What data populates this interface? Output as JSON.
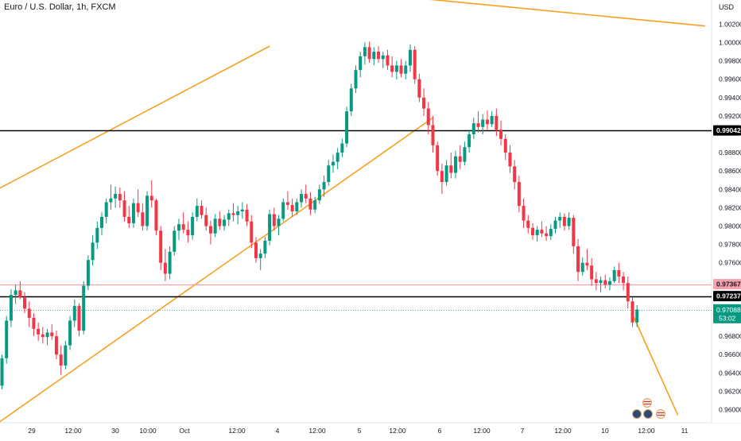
{
  "symbol_title": "Euro / U.S. Dollar, 1h, FXCM",
  "chart_data": {
    "type": "candlestick",
    "currency_label": "USD",
    "ylim": [
      0.9582,
      0.0
    ],
    "y_ticks": [
      "1.00200",
      "1.00000",
      "0.99800",
      "0.99600",
      "0.99400",
      "0.99200",
      "0.98800",
      "0.98600",
      "0.98400",
      "0.98200",
      "0.98000",
      "0.97800",
      "0.97600",
      "0.96800",
      "0.96600",
      "0.96400",
      "0.96200",
      "0.96000"
    ],
    "x_ticks": [
      "29",
      "12:00",
      "30",
      "10:00",
      "Oct",
      "12:00",
      "4",
      "12:00",
      "5",
      "12:00",
      "6",
      "12:00",
      "7",
      "12:00",
      "10",
      "12:00",
      "11"
    ],
    "horizontal_levels": [
      {
        "price": 0.99042,
        "label": "0.99042",
        "color": "#000000",
        "label_bg": "#000000"
      },
      {
        "price": 0.97367,
        "label": "0.97367",
        "color": "#f7a1ac",
        "label_bg": "#f7a1ac"
      },
      {
        "price": 0.97237,
        "label": "0.97237",
        "color": "#000000",
        "label_bg": "#000000"
      }
    ],
    "last_price": {
      "price": 0.97088,
      "label": "0.97088",
      "countdown": "53:02",
      "color": "#089981"
    },
    "trend_lines": [
      {
        "x1": -1,
        "y1": 0.984,
        "x2": 59,
        "y2": 0.9996,
        "color": "#f7a020"
      },
      {
        "x1": -1,
        "y1": 0.9585,
        "x2": 95,
        "y2": 0.9918,
        "color": "#f7a020"
      },
      {
        "x1": 88,
        "y1": 1.005,
        "x2": 155,
        "y2": 1.0018,
        "color": "#f7a020"
      },
      {
        "x1": 139,
        "y1": 0.9704,
        "x2": 149,
        "y2": 0.9594,
        "color": "#f7a020"
      }
    ],
    "up_color": "#089981",
    "down_color": "#f23645",
    "candles": [
      [
        0.9626,
        0.966,
        0.9622,
        0.9656
      ],
      [
        0.9656,
        0.9702,
        0.965,
        0.9697
      ],
      [
        0.9697,
        0.9731,
        0.969,
        0.9725
      ],
      [
        0.9725,
        0.9736,
        0.9715,
        0.973
      ],
      [
        0.973,
        0.974,
        0.972,
        0.9722
      ],
      [
        0.9722,
        0.9728,
        0.9705,
        0.971
      ],
      [
        0.971,
        0.9718,
        0.969,
        0.97
      ],
      [
        0.97,
        0.9705,
        0.968,
        0.9688
      ],
      [
        0.9688,
        0.9695,
        0.9675,
        0.9682
      ],
      [
        0.9682,
        0.969,
        0.9672,
        0.9679
      ],
      [
        0.9679,
        0.9688,
        0.967,
        0.9684
      ],
      [
        0.9684,
        0.9693,
        0.9676,
        0.968
      ],
      [
        0.968,
        0.9686,
        0.9655,
        0.966
      ],
      [
        0.966,
        0.967,
        0.9638,
        0.9648
      ],
      [
        0.9648,
        0.9675,
        0.9644,
        0.967
      ],
      [
        0.967,
        0.9702,
        0.9665,
        0.9697
      ],
      [
        0.9697,
        0.972,
        0.969,
        0.9713
      ],
      [
        0.9713,
        0.9716,
        0.968,
        0.9686
      ],
      [
        0.9686,
        0.974,
        0.9682,
        0.9735
      ],
      [
        0.9735,
        0.9768,
        0.973,
        0.9763
      ],
      [
        0.9763,
        0.979,
        0.9757,
        0.9782
      ],
      [
        0.9782,
        0.9805,
        0.9775,
        0.9798
      ],
      [
        0.9798,
        0.9815,
        0.979,
        0.981
      ],
      [
        0.981,
        0.983,
        0.9803,
        0.9826
      ],
      [
        0.9826,
        0.9845,
        0.9818,
        0.983
      ],
      [
        0.983,
        0.9843,
        0.982,
        0.9835
      ],
      [
        0.9835,
        0.9842,
        0.982,
        0.9828
      ],
      [
        0.9828,
        0.9838,
        0.9805,
        0.981
      ],
      [
        0.981,
        0.9822,
        0.9798,
        0.9803
      ],
      [
        0.9803,
        0.983,
        0.9798,
        0.9825
      ],
      [
        0.9825,
        0.984,
        0.981,
        0.9815
      ],
      [
        0.9815,
        0.9825,
        0.9795,
        0.98
      ],
      [
        0.98,
        0.9838,
        0.9795,
        0.9833
      ],
      [
        0.9833,
        0.985,
        0.982,
        0.9828
      ],
      [
        0.9828,
        0.983,
        0.979,
        0.9795
      ],
      [
        0.9795,
        0.98,
        0.9752,
        0.976
      ],
      [
        0.976,
        0.9775,
        0.974,
        0.9748
      ],
      [
        0.9748,
        0.9778,
        0.9742,
        0.9772
      ],
      [
        0.9772,
        0.98,
        0.9768,
        0.9795
      ],
      [
        0.9795,
        0.9808,
        0.9785,
        0.9802
      ],
      [
        0.9802,
        0.9815,
        0.9792,
        0.9796
      ],
      [
        0.9796,
        0.9805,
        0.9782,
        0.979
      ],
      [
        0.979,
        0.9815,
        0.9785,
        0.981
      ],
      [
        0.981,
        0.983,
        0.9805,
        0.9822
      ],
      [
        0.9822,
        0.9828,
        0.9808,
        0.9812
      ],
      [
        0.9812,
        0.982,
        0.9795,
        0.98
      ],
      [
        0.98,
        0.9806,
        0.978,
        0.9792
      ],
      [
        0.9792,
        0.9813,
        0.9788,
        0.9808
      ],
      [
        0.9808,
        0.9816,
        0.9796,
        0.98
      ],
      [
        0.98,
        0.9812,
        0.9795,
        0.9807
      ],
      [
        0.9807,
        0.9818,
        0.98,
        0.9814
      ],
      [
        0.9814,
        0.9825,
        0.9805,
        0.9812
      ],
      [
        0.9812,
        0.9822,
        0.9802,
        0.9816
      ],
      [
        0.9816,
        0.9826,
        0.9808,
        0.9818
      ],
      [
        0.9818,
        0.9824,
        0.98,
        0.9805
      ],
      [
        0.9805,
        0.9812,
        0.9776,
        0.9782
      ],
      [
        0.9782,
        0.9788,
        0.976,
        0.9765
      ],
      [
        0.9765,
        0.9775,
        0.9752,
        0.977
      ],
      [
        0.977,
        0.9788,
        0.9765,
        0.9784
      ],
      [
        0.9784,
        0.9818,
        0.9779,
        0.9813
      ],
      [
        0.9813,
        0.982,
        0.9795,
        0.98
      ],
      [
        0.98,
        0.9812,
        0.979,
        0.9808
      ],
      [
        0.9808,
        0.983,
        0.9805,
        0.9826
      ],
      [
        0.9826,
        0.9838,
        0.9818,
        0.9823
      ],
      [
        0.9823,
        0.983,
        0.981,
        0.9816
      ],
      [
        0.9816,
        0.983,
        0.9812,
        0.9826
      ],
      [
        0.9826,
        0.984,
        0.982,
        0.9835
      ],
      [
        0.9835,
        0.9845,
        0.9825,
        0.983
      ],
      [
        0.983,
        0.9837,
        0.9812,
        0.9818
      ],
      [
        0.9818,
        0.9832,
        0.9814,
        0.9828
      ],
      [
        0.9828,
        0.9845,
        0.9824,
        0.984
      ],
      [
        0.984,
        0.9855,
        0.9832,
        0.9848
      ],
      [
        0.9848,
        0.9872,
        0.9844,
        0.9866
      ],
      [
        0.9866,
        0.9878,
        0.9858,
        0.987
      ],
      [
        0.987,
        0.9885,
        0.9862,
        0.988
      ],
      [
        0.988,
        0.9895,
        0.9875,
        0.989
      ],
      [
        0.989,
        0.993,
        0.9886,
        0.9925
      ],
      [
        0.9925,
        0.9955,
        0.992,
        0.995
      ],
      [
        0.995,
        0.9975,
        0.9945,
        0.997
      ],
      [
        0.997,
        0.999,
        0.9962,
        0.9985
      ],
      [
        0.9985,
        1.0,
        0.9976,
        0.9995
      ],
      [
        0.9995,
        1.0001,
        0.9978,
        0.9982
      ],
      [
        0.9982,
        0.9995,
        0.9975,
        0.999
      ],
      [
        0.999,
        0.9996,
        0.9978,
        0.9982
      ],
      [
        0.9982,
        0.999,
        0.9972,
        0.9986
      ],
      [
        0.9986,
        0.9992,
        0.997,
        0.9975
      ],
      [
        0.9975,
        0.9985,
        0.9962,
        0.9968
      ],
      [
        0.9968,
        0.998,
        0.996,
        0.9975
      ],
      [
        0.9975,
        0.9982,
        0.9962,
        0.9966
      ],
      [
        0.9966,
        0.998,
        0.996,
        0.9975
      ],
      [
        0.9975,
        0.9998,
        0.9968,
        0.9992
      ],
      [
        0.9992,
        0.9996,
        0.9955,
        0.996
      ],
      [
        0.996,
        0.9966,
        0.9935,
        0.994
      ],
      [
        0.994,
        0.995,
        0.992,
        0.9928
      ],
      [
        0.9928,
        0.9935,
        0.99,
        0.991
      ],
      [
        0.991,
        0.992,
        0.988,
        0.9888
      ],
      [
        0.9888,
        0.9892,
        0.9855,
        0.986
      ],
      [
        0.986,
        0.9868,
        0.9835,
        0.9848
      ],
      [
        0.9848,
        0.9872,
        0.9844,
        0.9866
      ],
      [
        0.9866,
        0.988,
        0.9852,
        0.9858
      ],
      [
        0.9858,
        0.9882,
        0.9852,
        0.9876
      ],
      [
        0.9876,
        0.9888,
        0.9862,
        0.987
      ],
      [
        0.987,
        0.9892,
        0.9866,
        0.9886
      ],
      [
        0.9886,
        0.9905,
        0.988,
        0.99
      ],
      [
        0.99,
        0.9918,
        0.9895,
        0.9912
      ],
      [
        0.9912,
        0.9925,
        0.9902,
        0.9908
      ],
      [
        0.9908,
        0.9922,
        0.99,
        0.9916
      ],
      [
        0.9916,
        0.9926,
        0.9905,
        0.9911
      ],
      [
        0.9911,
        0.9925,
        0.9908,
        0.992
      ],
      [
        0.992,
        0.9928,
        0.9898,
        0.9905
      ],
      [
        0.9905,
        0.9915,
        0.9888,
        0.9895
      ],
      [
        0.9895,
        0.99,
        0.9872,
        0.988
      ],
      [
        0.988,
        0.9888,
        0.9858,
        0.9865
      ],
      [
        0.9865,
        0.9872,
        0.984,
        0.9848
      ],
      [
        0.9848,
        0.9855,
        0.9815,
        0.9822
      ],
      [
        0.9822,
        0.983,
        0.9798,
        0.9806
      ],
      [
        0.9806,
        0.9812,
        0.9792,
        0.9798
      ],
      [
        0.9798,
        0.9803,
        0.9785,
        0.979
      ],
      [
        0.979,
        0.98,
        0.9783,
        0.9796
      ],
      [
        0.9796,
        0.9805,
        0.9788,
        0.9792
      ],
      [
        0.9792,
        0.98,
        0.9784,
        0.9789
      ],
      [
        0.9789,
        0.9802,
        0.9785,
        0.9797
      ],
      [
        0.9797,
        0.981,
        0.9792,
        0.9806
      ],
      [
        0.9806,
        0.9815,
        0.9798,
        0.981
      ],
      [
        0.981,
        0.9814,
        0.9795,
        0.98
      ],
      [
        0.98,
        0.9815,
        0.9796,
        0.9809
      ],
      [
        0.9809,
        0.9812,
        0.977,
        0.9778
      ],
      [
        0.9778,
        0.9786,
        0.974,
        0.975
      ],
      [
        0.975,
        0.9766,
        0.9746,
        0.976
      ],
      [
        0.976,
        0.9775,
        0.9752,
        0.9757
      ],
      [
        0.9757,
        0.9765,
        0.9735,
        0.9742
      ],
      [
        0.9742,
        0.975,
        0.973,
        0.9738
      ],
      [
        0.9738,
        0.9745,
        0.9728,
        0.9741
      ],
      [
        0.9741,
        0.9747,
        0.9732,
        0.9736
      ],
      [
        0.9736,
        0.9744,
        0.973,
        0.974
      ],
      [
        0.974,
        0.9756,
        0.9738,
        0.9752
      ],
      [
        0.9752,
        0.976,
        0.9738,
        0.9745
      ],
      [
        0.9745,
        0.975,
        0.973,
        0.9738
      ],
      [
        0.9738,
        0.9745,
        0.971,
        0.9718
      ],
      [
        0.9718,
        0.9722,
        0.969,
        0.9695
      ],
      [
        0.9695,
        0.9714,
        0.969,
        0.9709
      ]
    ]
  }
}
